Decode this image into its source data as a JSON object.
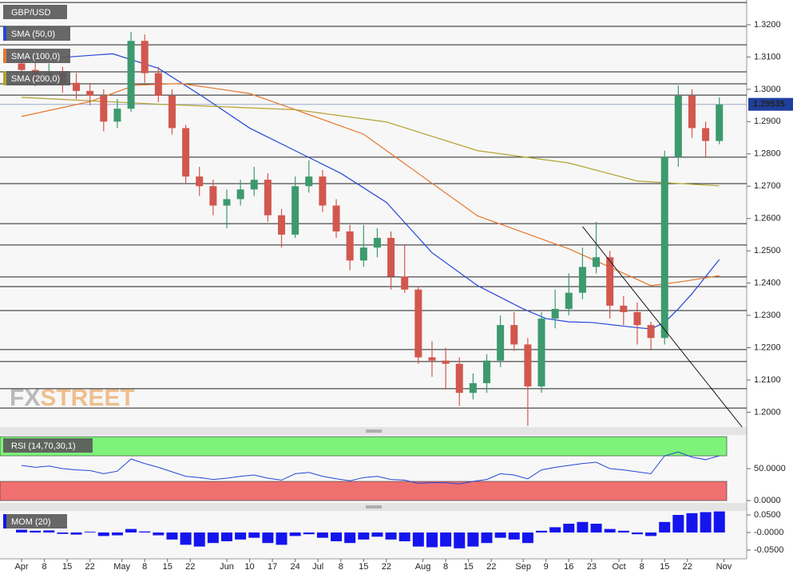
{
  "chart_data": [
    {
      "type": "candlestick",
      "symbol": "GBP/USD",
      "xlim": [
        -4.73,
        159.0
      ],
      "ylim": [
        1.1954,
        1.32766
      ],
      "xticks": [
        {
          "value": 0,
          "label": "Apr"
        },
        {
          "value": 5,
          "label": "8"
        },
        {
          "value": 10,
          "label": "15"
        },
        {
          "value": 15,
          "label": "22"
        },
        {
          "value": 22,
          "label": "May"
        },
        {
          "value": 27,
          "label": "8"
        },
        {
          "value": 32,
          "label": "15"
        },
        {
          "value": 37,
          "label": "22"
        },
        {
          "value": 45,
          "label": "Jun"
        },
        {
          "value": 50,
          "label": "10"
        },
        {
          "value": 55,
          "label": "17"
        },
        {
          "value": 60,
          "label": "24"
        },
        {
          "value": 65,
          "label": "Jul"
        },
        {
          "value": 70,
          "label": "8"
        },
        {
          "value": 75,
          "label": "15"
        },
        {
          "value": 80,
          "label": "22"
        },
        {
          "value": 88,
          "label": "Aug"
        },
        {
          "value": 93,
          "label": "8"
        },
        {
          "value": 98,
          "label": "15"
        },
        {
          "value": 103,
          "label": "22"
        },
        {
          "value": 110,
          "label": "Sep"
        },
        {
          "value": 115,
          "label": "9"
        },
        {
          "value": 120,
          "label": "16"
        },
        {
          "value": 125,
          "label": "23"
        },
        {
          "value": 131,
          "label": "Oct"
        },
        {
          "value": 136,
          "label": "8"
        },
        {
          "value": 141,
          "label": "15"
        },
        {
          "value": 146,
          "label": "22"
        },
        {
          "value": 154,
          "label": "Nov"
        }
      ],
      "yticks": [
        {
          "value": 1.32,
          "label": "1.3200"
        },
        {
          "value": 1.31,
          "label": "1.3100"
        },
        {
          "value": 1.3,
          "label": "1.3000"
        },
        {
          "value": 1.29,
          "label": "1.2900"
        },
        {
          "value": 1.28,
          "label": "1.2800"
        },
        {
          "value": 1.27,
          "label": "1.2700"
        },
        {
          "value": 1.26,
          "label": "1.2600"
        },
        {
          "value": 1.25,
          "label": "1.2500"
        },
        {
          "value": 1.24,
          "label": "1.2400"
        },
        {
          "value": 1.23,
          "label": "1.2300"
        },
        {
          "value": 1.22,
          "label": "1.2200"
        },
        {
          "value": 1.21,
          "label": "1.2100"
        },
        {
          "value": 1.2,
          "label": "1.2000"
        }
      ],
      "up_color": "#3c9a6e",
      "down_color": "#d2574e",
      "x": [
        0,
        3,
        6,
        9,
        12,
        15,
        18,
        21,
        24,
        27,
        30,
        33,
        36,
        39,
        42,
        45,
        48,
        51,
        54,
        57,
        60,
        63,
        66,
        69,
        72,
        75,
        78,
        81,
        84,
        87,
        90,
        93,
        96,
        99,
        102,
        105,
        108,
        111,
        114,
        117,
        120,
        123,
        126,
        129,
        132,
        135,
        138,
        141,
        144,
        147,
        150,
        153
      ],
      "open": [
        1.308,
        1.306,
        1.304,
        1.305,
        1.302,
        1.2995,
        1.298,
        1.29,
        1.294,
        1.315,
        1.305,
        1.298,
        1.288,
        1.273,
        1.27,
        1.264,
        1.266,
        1.269,
        1.272,
        1.261,
        1.255,
        1.27,
        1.273,
        1.264,
        1.256,
        1.247,
        1.251,
        1.254,
        1.242,
        1.238,
        1.217,
        1.216,
        1.215,
        1.206,
        1.209,
        1.216,
        1.227,
        1.221,
        1.208,
        1.229,
        1.232,
        1.237,
        1.245,
        1.248,
        1.233,
        1.231,
        1.227,
        1.223,
        1.279,
        1.298,
        1.288,
        1.284
      ],
      "high": [
        1.311,
        1.309,
        1.308,
        1.307,
        1.305,
        1.302,
        1.3,
        1.297,
        1.3178,
        1.317,
        1.307,
        1.3,
        1.289,
        1.276,
        1.272,
        1.269,
        1.272,
        1.276,
        1.274,
        1.263,
        1.273,
        1.278,
        1.275,
        1.266,
        1.258,
        1.258,
        1.257,
        1.256,
        1.252,
        1.239,
        1.222,
        1.22,
        1.217,
        1.212,
        1.218,
        1.23,
        1.231,
        1.223,
        1.231,
        1.238,
        1.243,
        1.251,
        1.259,
        1.25,
        1.236,
        1.234,
        1.228,
        1.281,
        1.3012,
        1.3,
        1.29,
        1.2975
      ],
      "low": [
        1.303,
        1.301,
        1.302,
        1.299,
        1.297,
        1.295,
        1.287,
        1.288,
        1.293,
        1.302,
        1.296,
        1.286,
        1.271,
        1.267,
        1.261,
        1.257,
        1.264,
        1.267,
        1.259,
        1.251,
        1.254,
        1.268,
        1.262,
        1.254,
        1.244,
        1.245,
        1.248,
        1.238,
        1.237,
        1.215,
        1.211,
        1.207,
        1.202,
        1.204,
        1.206,
        1.214,
        1.219,
        1.1958,
        1.206,
        1.226,
        1.23,
        1.235,
        1.243,
        1.229,
        1.227,
        1.221,
        1.2195,
        1.221,
        1.276,
        1.285,
        1.279,
        1.283
      ],
      "close": [
        1.306,
        1.304,
        1.305,
        1.302,
        1.2995,
        1.298,
        1.29,
        1.294,
        1.315,
        1.305,
        1.298,
        1.288,
        1.273,
        1.27,
        1.264,
        1.266,
        1.269,
        1.272,
        1.261,
        1.255,
        1.27,
        1.273,
        1.264,
        1.256,
        1.247,
        1.251,
        1.254,
        1.242,
        1.238,
        1.217,
        1.216,
        1.215,
        1.206,
        1.209,
        1.216,
        1.227,
        1.221,
        1.208,
        1.229,
        1.232,
        1.237,
        1.245,
        1.248,
        1.233,
        1.231,
        1.227,
        1.223,
        1.279,
        1.298,
        1.288,
        1.284,
        1.2953
      ],
      "series": [
        {
          "name": "SMA (50,0)",
          "color": "#2446d8",
          "x": [
            0,
            10,
            20,
            30,
            40,
            50,
            60,
            70,
            80,
            90,
            100,
            110,
            115,
            120,
            125,
            130,
            135,
            138,
            141,
            144,
            147,
            150,
            153
          ],
          "values": [
            1.3089,
            1.31,
            1.311,
            1.3065,
            1.2975,
            1.288,
            1.281,
            1.274,
            1.265,
            1.2494,
            1.2392,
            1.232,
            1.229,
            1.228,
            1.2278,
            1.227,
            1.2262,
            1.2258,
            1.2278,
            1.232,
            1.2367,
            1.242,
            1.2473
          ]
        },
        {
          "name": "SMA (100,0)",
          "color": "#e5772d",
          "x": [
            0,
            15,
            25,
            35,
            50,
            60,
            75,
            90,
            100,
            110,
            120,
            130,
            138,
            145,
            153
          ],
          "values": [
            1.2916,
            1.2962,
            1.3013,
            1.3018,
            1.2987,
            1.2937,
            1.2861,
            1.2709,
            1.2608,
            1.2557,
            1.2506,
            1.2443,
            1.2392,
            1.2405,
            1.2423
          ]
        },
        {
          "name": "SMA (200,0)",
          "color": "#b3a334",
          "x": [
            0,
            30,
            60,
            80,
            100,
            120,
            135,
            153
          ],
          "values": [
            1.2975,
            1.2954,
            1.2937,
            1.2899,
            1.281,
            1.2772,
            1.2716,
            1.2701
          ]
        }
      ],
      "levels": [
        1.3269,
        1.3195,
        1.3138,
        1.3054,
        1.3017,
        1.2982,
        1.279,
        1.2708,
        1.2584,
        1.2518,
        1.2419,
        1.2389,
        1.2315,
        1.2194,
        1.2157,
        1.2073,
        1.2013
      ],
      "trendline": {
        "x": [
          123,
          158
        ],
        "values": [
          1.2575,
          1.1954
        ]
      },
      "last_price": 1.29535,
      "watermark": [
        "FX",
        "STREET"
      ]
    },
    {
      "type": "line",
      "title": "RSI (14,70,30,1)",
      "color": "#2446d8",
      "ylim": [
        0,
        100
      ],
      "yticks": [
        {
          "value": 0,
          "label": "0.0000"
        },
        {
          "value": 50,
          "label": "50.0000"
        }
      ],
      "bands": [
        30,
        70
      ],
      "x": [
        0,
        3,
        6,
        9,
        12,
        15,
        18,
        21,
        24,
        27,
        30,
        33,
        36,
        39,
        42,
        45,
        48,
        51,
        54,
        57,
        60,
        63,
        66,
        69,
        72,
        75,
        78,
        81,
        84,
        87,
        90,
        93,
        96,
        99,
        102,
        105,
        108,
        111,
        114,
        117,
        120,
        123,
        126,
        129,
        132,
        135,
        138,
        141,
        144,
        147,
        150,
        153
      ],
      "values": [
        55,
        52,
        54,
        50,
        48,
        47,
        42,
        46,
        65,
        58,
        52,
        45,
        38,
        36,
        33,
        35,
        38,
        40,
        35,
        32,
        42,
        44,
        38,
        34,
        31,
        36,
        38,
        33,
        32,
        27,
        28,
        28,
        26,
        30,
        33,
        42,
        40,
        34,
        48,
        52,
        55,
        58,
        60,
        50,
        48,
        45,
        42,
        70,
        76,
        68,
        64,
        70
      ]
    },
    {
      "type": "bar",
      "title": "MOM (20)",
      "color": "#1414ee",
      "ylim": [
        -0.075,
        0.0614
      ],
      "yticks": [
        {
          "value": 0.05,
          "label": "0.0500"
        },
        {
          "value": 0,
          "label": "-0.0000"
        },
        {
          "value": -0.05,
          "label": "-0.0500"
        }
      ],
      "x": [
        0,
        3,
        6,
        9,
        12,
        15,
        18,
        21,
        24,
        27,
        30,
        33,
        36,
        39,
        42,
        45,
        48,
        51,
        54,
        57,
        60,
        63,
        66,
        69,
        72,
        75,
        78,
        81,
        84,
        87,
        90,
        93,
        96,
        99,
        102,
        105,
        108,
        111,
        114,
        117,
        120,
        123,
        126,
        129,
        132,
        135,
        138,
        141,
        144,
        147,
        150,
        153
      ],
      "values": [
        0.008,
        0.005,
        0.006,
        -0.004,
        -0.006,
        0.002,
        -0.01,
        -0.008,
        0.01,
        0.003,
        -0.008,
        -0.02,
        -0.035,
        -0.04,
        -0.03,
        -0.025,
        -0.02,
        -0.015,
        -0.03,
        -0.035,
        -0.01,
        -0.005,
        -0.015,
        -0.025,
        -0.03,
        -0.02,
        -0.012,
        -0.02,
        -0.025,
        -0.04,
        -0.042,
        -0.04,
        -0.045,
        -0.04,
        -0.03,
        -0.015,
        -0.02,
        -0.03,
        0.005,
        0.015,
        0.025,
        0.03,
        0.025,
        0.01,
        0.005,
        -0.005,
        -0.01,
        0.03,
        0.05,
        0.055,
        0.058,
        0.06
      ]
    }
  ]
}
